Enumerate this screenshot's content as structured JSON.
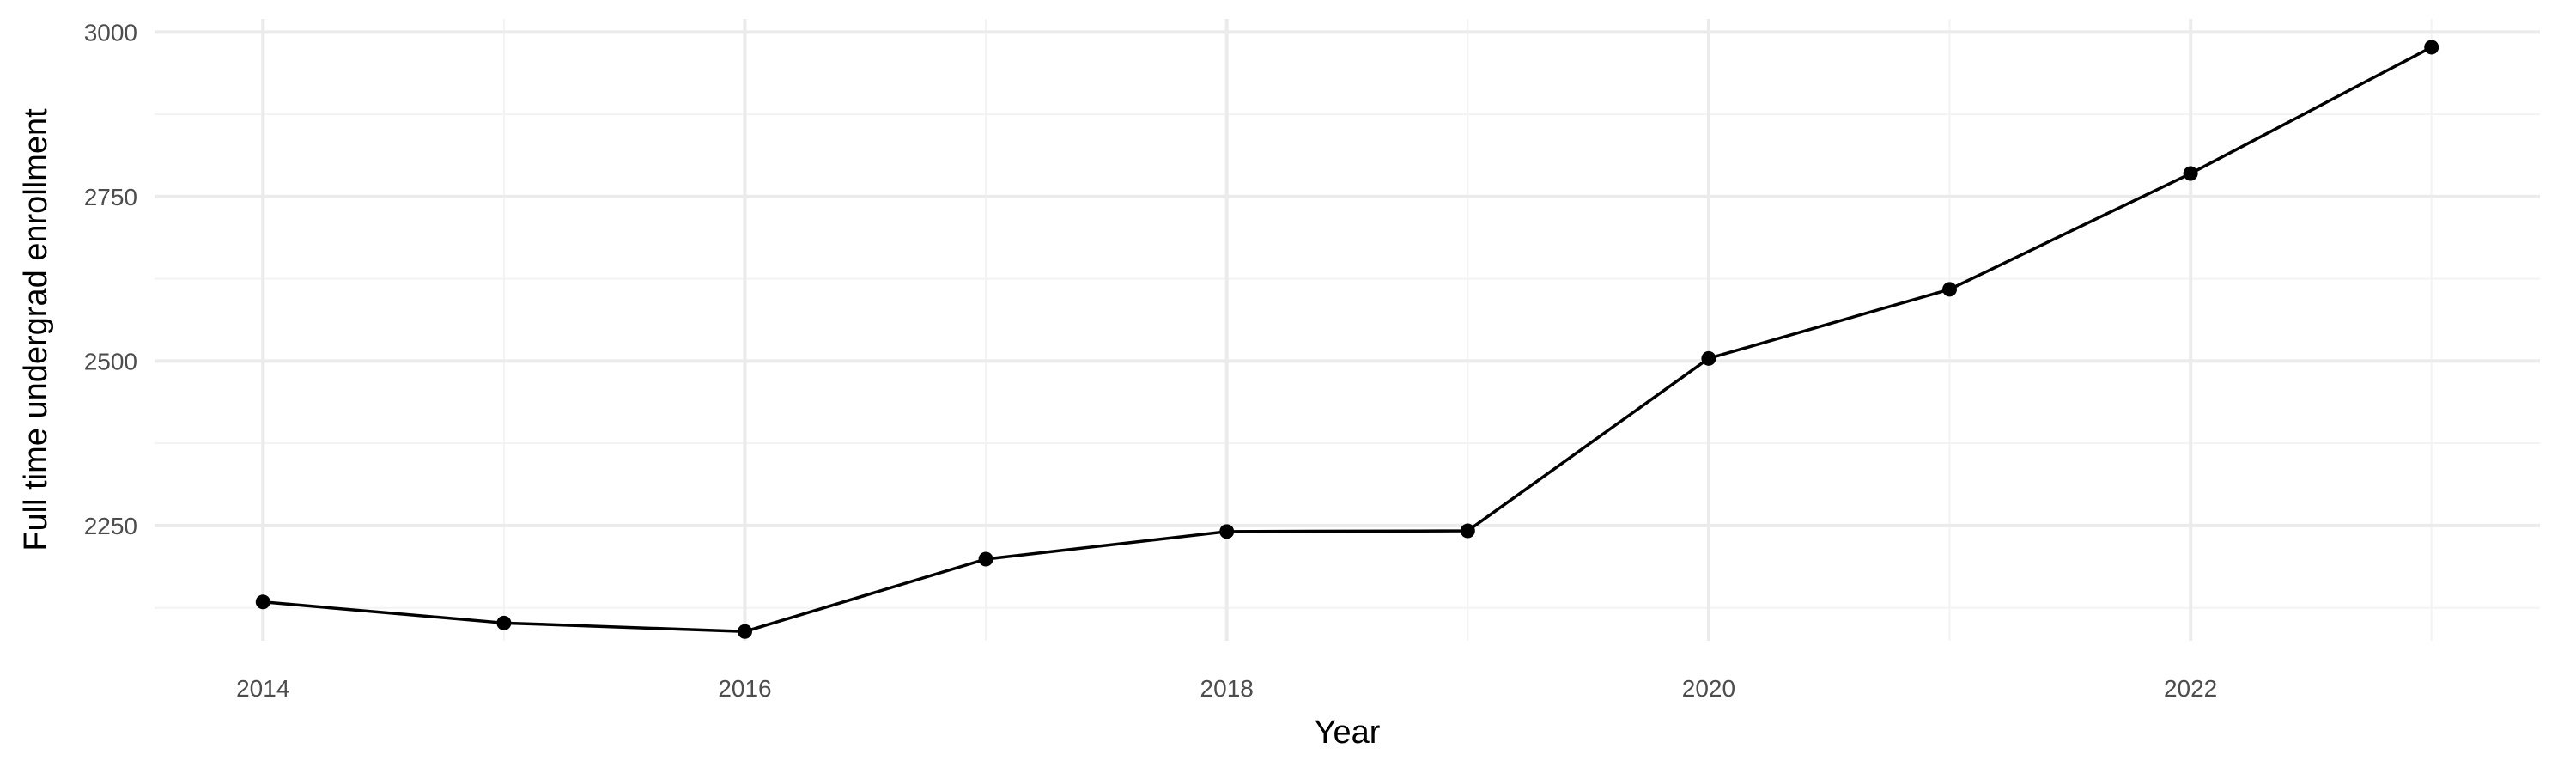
{
  "chart_data": {
    "type": "line",
    "title": "",
    "xlabel": "Year",
    "ylabel": "Full time undergrad enrollment",
    "x": [
      2014,
      2015,
      2016,
      2017,
      2018,
      2019,
      2020,
      2021,
      2022,
      2023
    ],
    "series": [
      {
        "values": [
          2134,
          2102,
          2089,
          2199,
          2241,
          2242,
          2504,
          2609,
          2785,
          2977
        ]
      }
    ],
    "xlim": [
      2013.55,
      2023.45
    ],
    "ylim": [
      2075,
      3020
    ],
    "x_ticks": [
      2014,
      2016,
      2018,
      2020,
      2022
    ],
    "x_minor_ticks": [
      2015,
      2017,
      2019,
      2021,
      2023
    ],
    "y_ticks": [
      2250,
      2500,
      2750,
      3000
    ],
    "y_minor_ticks": [
      2125,
      2375,
      2625,
      2875
    ],
    "grid": true,
    "legend": "none",
    "colors": {
      "line": "#000000",
      "point": "#000000",
      "grid_major": "#ebebeb",
      "grid_minor": "#f3f3f3",
      "tick_text": "#4d4d4d"
    }
  }
}
